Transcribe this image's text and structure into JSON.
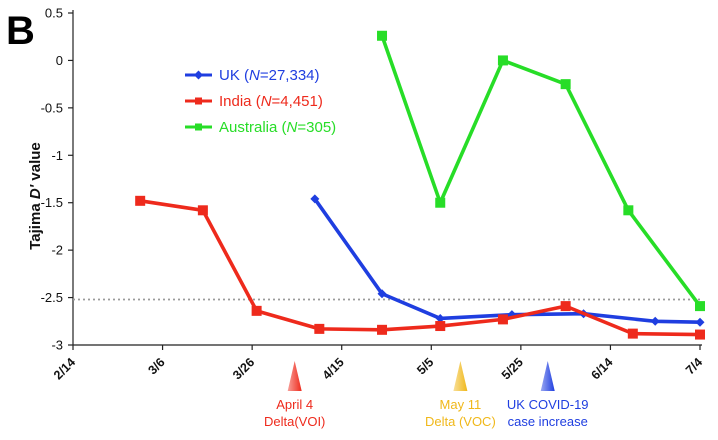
{
  "panel_label": "B",
  "chart_data": {
    "type": "line",
    "ylabel_prefix": "Tajima ",
    "ylabel_italic": "D'",
    "ylabel_suffix": " value",
    "ylim": [
      -3,
      0.5
    ],
    "yticks": [
      0.5,
      0,
      -0.5,
      -1,
      -1.5,
      -2,
      -2.5,
      -3
    ],
    "ytick_labels": [
      "0.5",
      "0",
      "-0.5",
      "-1",
      "-1.5",
      "-2",
      "-2.5",
      "-3"
    ],
    "x_tick_labels": [
      "2/14",
      "3/6",
      "3/26",
      "4/15",
      "5/5",
      "5/25",
      "6/14",
      "7/4"
    ],
    "x_tick_days": [
      0,
      20,
      40,
      60,
      80,
      100,
      120,
      140
    ],
    "xlim_days": [
      0,
      140
    ],
    "reference_line_y": -2.52,
    "legend_position": "top-left",
    "series": [
      {
        "name": "UK",
        "n_prefix": " (",
        "n_italic": "N",
        "n_suffix": "=27,334)",
        "color": "#1f3ee0",
        "marker": "diamond",
        "x_days": [
          54,
          69,
          82,
          98,
          114,
          130,
          140
        ],
        "y": [
          -1.46,
          -2.46,
          -2.72,
          -2.68,
          -2.67,
          -2.75,
          -2.76
        ]
      },
      {
        "name": "India",
        "n_prefix": " (",
        "n_italic": "N",
        "n_suffix": "=4,451)",
        "color": "#ee2a1c",
        "marker": "square",
        "x_days": [
          15,
          29,
          41,
          55,
          69,
          82,
          96,
          110,
          125,
          140
        ],
        "y": [
          -1.48,
          -1.58,
          -2.64,
          -2.83,
          -2.84,
          -2.8,
          -2.73,
          -2.59,
          -2.88,
          -2.89
        ]
      },
      {
        "name": "Australia",
        "n_prefix": " (",
        "n_italic": "N",
        "n_suffix": "=305)",
        "color": "#27dd27",
        "marker": "square",
        "x_days": [
          69,
          82,
          96,
          110,
          124,
          140
        ],
        "y": [
          0.26,
          -1.5,
          0.0,
          -0.25,
          -1.58,
          -2.59
        ]
      }
    ],
    "annotations": [
      {
        "line1": "April 4",
        "line2": "Delta(VOI)",
        "color": "#ee2a1c",
        "x_days": 49.5
      },
      {
        "line1": "May 11",
        "line2": "Delta (VOC)",
        "color": "#f0b81a",
        "x_days": 86.5
      },
      {
        "line1": "UK COVID-19",
        "line2": "case increase",
        "color": "#1f3ee0",
        "x_days": 106
      }
    ]
  }
}
